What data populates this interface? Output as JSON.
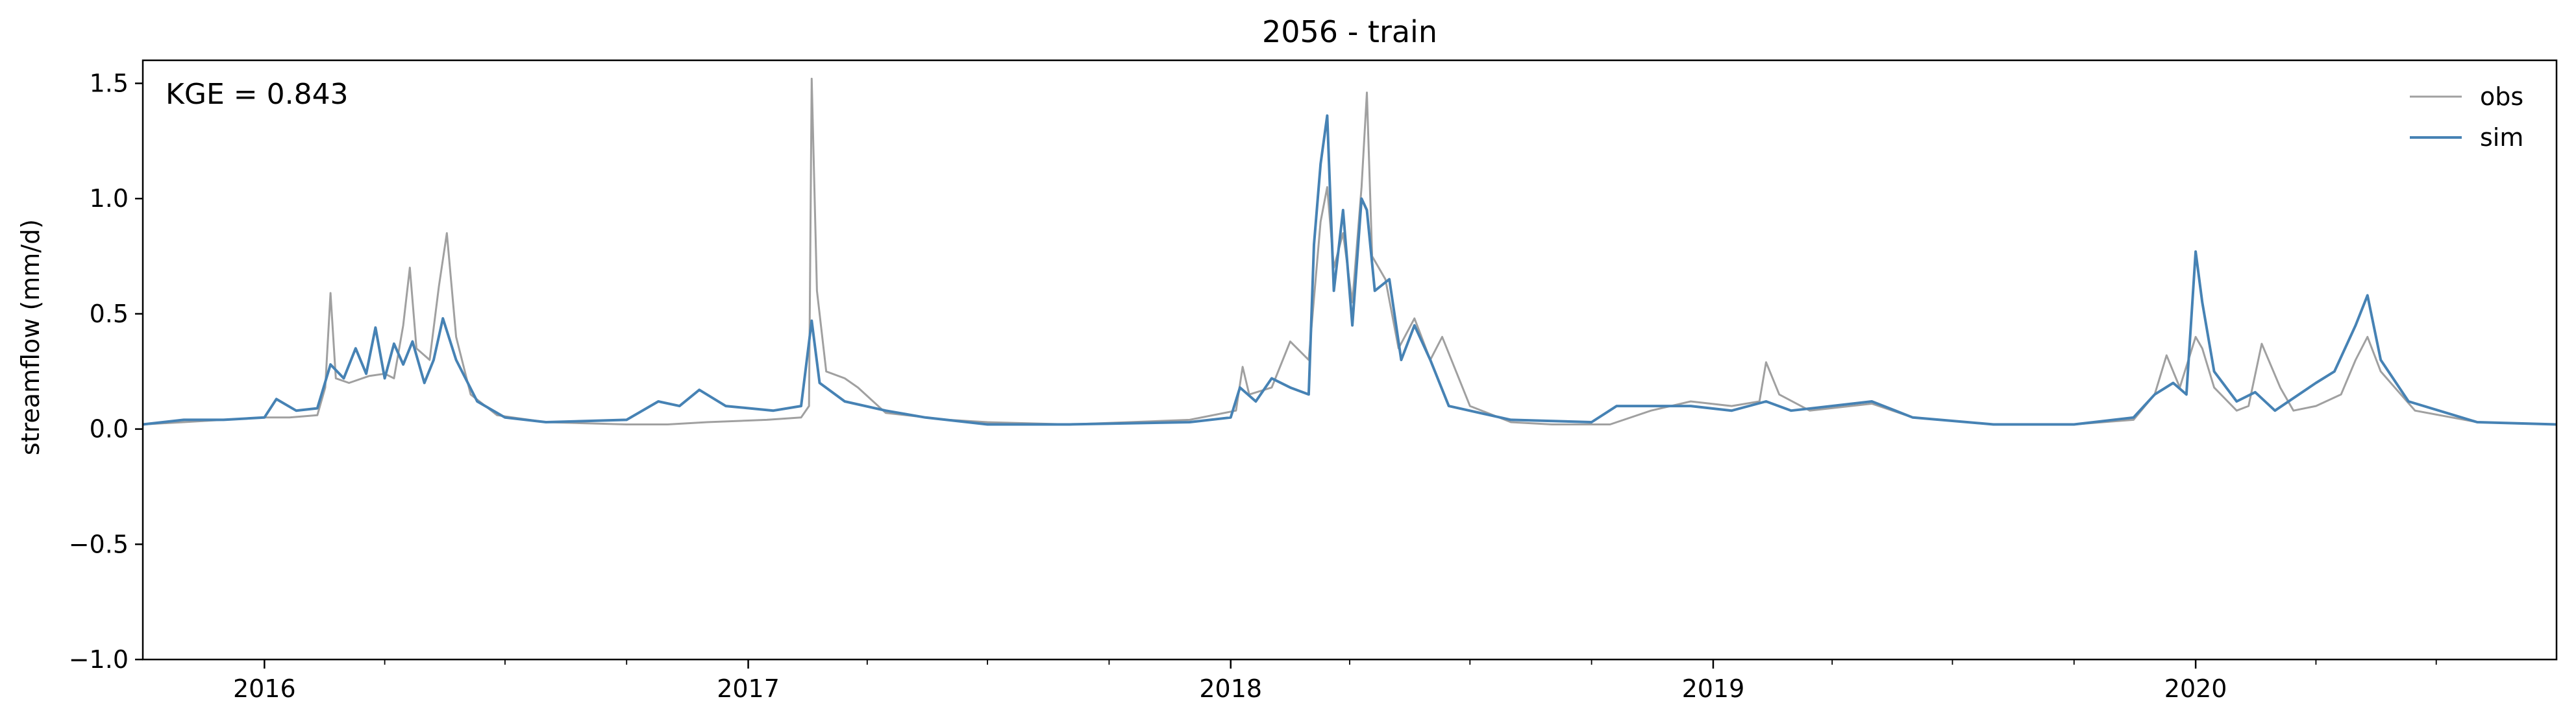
{
  "chart_data": {
    "type": "line",
    "title": "2056 - train",
    "xlabel": "",
    "ylabel": "streamflow (mm/d)",
    "annotation": "KGE = 0.843",
    "legend_position": "top-right",
    "grid": false,
    "xlim": [
      "2015-10-01",
      "2020-09-30"
    ],
    "ylim": [
      -1.0,
      1.6
    ],
    "yticks": [
      -1.0,
      -0.5,
      0.0,
      0.5,
      1.0,
      1.5
    ],
    "ytick_labels": [
      "−1.0",
      "−0.5",
      "0.0",
      "0.5",
      "1.0",
      "1.5"
    ],
    "xticks": [
      "2016-01-01",
      "2017-01-01",
      "2018-01-01",
      "2019-01-01",
      "2020-01-01"
    ],
    "xtick_labels": [
      "2016",
      "2017",
      "2018",
      "2019",
      "2020"
    ],
    "colors": {
      "obs": "#a0a0a0",
      "sim": "#4682b4"
    },
    "series": [
      {
        "name": "obs",
        "color": "#a0a0a0",
        "points": [
          [
            "2015-10-01",
            0.02
          ],
          [
            "2015-11-01",
            0.03
          ],
          [
            "2015-12-01",
            0.04
          ],
          [
            "2016-01-01",
            0.05
          ],
          [
            "2016-01-20",
            0.05
          ],
          [
            "2016-02-10",
            0.06
          ],
          [
            "2016-02-16",
            0.18
          ],
          [
            "2016-02-20",
            0.59
          ],
          [
            "2016-02-24",
            0.22
          ],
          [
            "2016-03-05",
            0.2
          ],
          [
            "2016-03-20",
            0.23
          ],
          [
            "2016-04-01",
            0.24
          ],
          [
            "2016-04-08",
            0.22
          ],
          [
            "2016-04-15",
            0.45
          ],
          [
            "2016-04-20",
            0.7
          ],
          [
            "2016-04-25",
            0.35
          ],
          [
            "2016-05-05",
            0.3
          ],
          [
            "2016-05-12",
            0.62
          ],
          [
            "2016-05-18",
            0.85
          ],
          [
            "2016-05-25",
            0.4
          ],
          [
            "2016-06-05",
            0.15
          ],
          [
            "2016-06-25",
            0.06
          ],
          [
            "2016-08-01",
            0.03
          ],
          [
            "2016-10-01",
            0.02
          ],
          [
            "2016-11-01",
            0.02
          ],
          [
            "2016-12-01",
            0.03
          ],
          [
            "2017-01-15",
            0.04
          ],
          [
            "2017-02-10",
            0.05
          ],
          [
            "2017-02-16",
            0.1
          ],
          [
            "2017-02-18",
            1.52
          ],
          [
            "2017-02-22",
            0.6
          ],
          [
            "2017-03-01",
            0.25
          ],
          [
            "2017-03-15",
            0.22
          ],
          [
            "2017-03-25",
            0.18
          ],
          [
            "2017-04-15",
            0.07
          ],
          [
            "2017-06-01",
            0.04
          ],
          [
            "2017-07-01",
            0.03
          ],
          [
            "2017-09-01",
            0.02
          ],
          [
            "2017-12-01",
            0.04
          ],
          [
            "2018-01-05",
            0.08
          ],
          [
            "2018-01-10",
            0.27
          ],
          [
            "2018-01-15",
            0.15
          ],
          [
            "2018-02-01",
            0.18
          ],
          [
            "2018-02-15",
            0.38
          ],
          [
            "2018-03-01",
            0.3
          ],
          [
            "2018-03-10",
            0.9
          ],
          [
            "2018-03-15",
            1.05
          ],
          [
            "2018-03-20",
            0.7
          ],
          [
            "2018-03-27",
            0.85
          ],
          [
            "2018-04-03",
            0.55
          ],
          [
            "2018-04-10",
            1.05
          ],
          [
            "2018-04-14",
            1.46
          ],
          [
            "2018-04-18",
            0.75
          ],
          [
            "2018-04-28",
            0.65
          ],
          [
            "2018-05-08",
            0.35
          ],
          [
            "2018-05-20",
            0.48
          ],
          [
            "2018-06-01",
            0.3
          ],
          [
            "2018-06-10",
            0.4
          ],
          [
            "2018-07-01",
            0.1
          ],
          [
            "2018-08-01",
            0.03
          ],
          [
            "2018-09-01",
            0.02
          ],
          [
            "2018-10-15",
            0.02
          ],
          [
            "2018-11-15",
            0.08
          ],
          [
            "2018-12-15",
            0.12
          ],
          [
            "2019-01-15",
            0.1
          ],
          [
            "2019-02-05",
            0.12
          ],
          [
            "2019-02-10",
            0.29
          ],
          [
            "2019-02-20",
            0.15
          ],
          [
            "2019-03-15",
            0.08
          ],
          [
            "2019-05-01",
            0.11
          ],
          [
            "2019-06-01",
            0.05
          ],
          [
            "2019-08-01",
            0.02
          ],
          [
            "2019-10-01",
            0.02
          ],
          [
            "2019-11-15",
            0.04
          ],
          [
            "2019-12-01",
            0.15
          ],
          [
            "2019-12-10",
            0.32
          ],
          [
            "2019-12-20",
            0.18
          ],
          [
            "2020-01-01",
            0.4
          ],
          [
            "2020-01-06",
            0.35
          ],
          [
            "2020-01-15",
            0.18
          ],
          [
            "2020-02-01",
            0.08
          ],
          [
            "2020-02-10",
            0.1
          ],
          [
            "2020-02-20",
            0.37
          ],
          [
            "2020-03-05",
            0.18
          ],
          [
            "2020-03-15",
            0.08
          ],
          [
            "2020-04-01",
            0.1
          ],
          [
            "2020-04-20",
            0.15
          ],
          [
            "2020-05-01",
            0.3
          ],
          [
            "2020-05-10",
            0.4
          ],
          [
            "2020-05-20",
            0.25
          ],
          [
            "2020-06-15",
            0.08
          ],
          [
            "2020-08-01",
            0.03
          ],
          [
            "2020-09-30",
            0.02
          ]
        ]
      },
      {
        "name": "sim",
        "color": "#4682b4",
        "points": [
          [
            "2015-10-01",
            0.02
          ],
          [
            "2015-11-01",
            0.04
          ],
          [
            "2015-12-01",
            0.04
          ],
          [
            "2016-01-01",
            0.05
          ],
          [
            "2016-01-10",
            0.13
          ],
          [
            "2016-01-25",
            0.08
          ],
          [
            "2016-02-10",
            0.09
          ],
          [
            "2016-02-20",
            0.28
          ],
          [
            "2016-03-01",
            0.22
          ],
          [
            "2016-03-10",
            0.35
          ],
          [
            "2016-03-18",
            0.24
          ],
          [
            "2016-03-25",
            0.44
          ],
          [
            "2016-04-01",
            0.22
          ],
          [
            "2016-04-08",
            0.37
          ],
          [
            "2016-04-15",
            0.28
          ],
          [
            "2016-04-22",
            0.38
          ],
          [
            "2016-05-01",
            0.2
          ],
          [
            "2016-05-08",
            0.3
          ],
          [
            "2016-05-15",
            0.48
          ],
          [
            "2016-05-25",
            0.3
          ],
          [
            "2016-06-10",
            0.12
          ],
          [
            "2016-07-01",
            0.05
          ],
          [
            "2016-08-01",
            0.03
          ],
          [
            "2016-10-01",
            0.04
          ],
          [
            "2016-10-25",
            0.12
          ],
          [
            "2016-11-10",
            0.1
          ],
          [
            "2016-11-25",
            0.17
          ],
          [
            "2016-12-15",
            0.1
          ],
          [
            "2017-01-20",
            0.08
          ],
          [
            "2017-02-10",
            0.1
          ],
          [
            "2017-02-18",
            0.47
          ],
          [
            "2017-02-24",
            0.2
          ],
          [
            "2017-03-15",
            0.12
          ],
          [
            "2017-04-15",
            0.08
          ],
          [
            "2017-05-15",
            0.05
          ],
          [
            "2017-07-01",
            0.02
          ],
          [
            "2017-09-01",
            0.02
          ],
          [
            "2017-12-01",
            0.03
          ],
          [
            "2018-01-01",
            0.05
          ],
          [
            "2018-01-08",
            0.18
          ],
          [
            "2018-01-20",
            0.12
          ],
          [
            "2018-02-01",
            0.22
          ],
          [
            "2018-02-15",
            0.18
          ],
          [
            "2018-03-01",
            0.15
          ],
          [
            "2018-03-05",
            0.8
          ],
          [
            "2018-03-10",
            1.15
          ],
          [
            "2018-03-15",
            1.36
          ],
          [
            "2018-03-20",
            0.6
          ],
          [
            "2018-03-27",
            0.95
          ],
          [
            "2018-04-03",
            0.45
          ],
          [
            "2018-04-10",
            1.0
          ],
          [
            "2018-04-14",
            0.95
          ],
          [
            "2018-04-20",
            0.6
          ],
          [
            "2018-05-01",
            0.65
          ],
          [
            "2018-05-10",
            0.3
          ],
          [
            "2018-05-20",
            0.45
          ],
          [
            "2018-06-01",
            0.3
          ],
          [
            "2018-06-15",
            0.1
          ],
          [
            "2018-08-01",
            0.04
          ],
          [
            "2018-10-01",
            0.03
          ],
          [
            "2018-10-20",
            0.1
          ],
          [
            "2018-11-15",
            0.1
          ],
          [
            "2018-12-15",
            0.1
          ],
          [
            "2019-01-15",
            0.08
          ],
          [
            "2019-02-10",
            0.12
          ],
          [
            "2019-03-01",
            0.08
          ],
          [
            "2019-05-01",
            0.12
          ],
          [
            "2019-06-01",
            0.05
          ],
          [
            "2019-08-01",
            0.02
          ],
          [
            "2019-10-01",
            0.02
          ],
          [
            "2019-11-15",
            0.05
          ],
          [
            "2019-12-01",
            0.15
          ],
          [
            "2019-12-15",
            0.2
          ],
          [
            "2019-12-25",
            0.15
          ],
          [
            "2020-01-01",
            0.77
          ],
          [
            "2020-01-06",
            0.55
          ],
          [
            "2020-01-15",
            0.25
          ],
          [
            "2020-02-01",
            0.12
          ],
          [
            "2020-02-15",
            0.16
          ],
          [
            "2020-03-01",
            0.08
          ],
          [
            "2020-04-01",
            0.2
          ],
          [
            "2020-04-15",
            0.25
          ],
          [
            "2020-05-01",
            0.45
          ],
          [
            "2020-05-10",
            0.58
          ],
          [
            "2020-05-20",
            0.3
          ],
          [
            "2020-06-10",
            0.12
          ],
          [
            "2020-08-01",
            0.03
          ],
          [
            "2020-09-30",
            0.02
          ]
        ]
      }
    ]
  }
}
